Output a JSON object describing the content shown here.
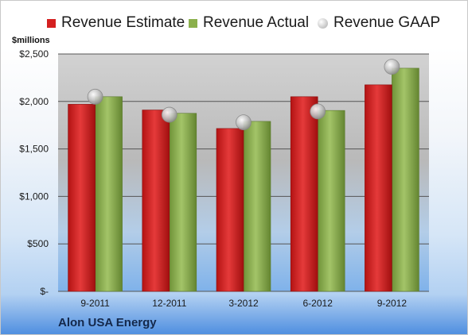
{
  "chart_data": {
    "type": "bar",
    "categories": [
      "9-2011",
      "12-2011",
      "3-2012",
      "6-2012",
      "9-2012"
    ],
    "series": [
      {
        "name": "Revenue Estimate",
        "type": "bar",
        "values": [
          1970,
          1910,
          1715,
          2050,
          2175
        ]
      },
      {
        "name": "Revenue Actual",
        "type": "bar",
        "values": [
          2050,
          1875,
          1790,
          1905,
          2350
        ]
      },
      {
        "name": "Revenue GAAP",
        "type": "scatter",
        "values": [
          2050,
          1860,
          1780,
          1895,
          2365
        ]
      }
    ],
    "ylim": [
      0,
      2500
    ],
    "yticks": [
      0,
      500,
      1000,
      1500,
      2000,
      2500
    ],
    "ytick_labels": [
      "$-",
      "$500",
      "$1,000",
      "$1,500",
      "$2,000",
      "$2,500"
    ],
    "ylabel": "$millions",
    "grid": true,
    "legend_position": "top"
  },
  "company_name": "Alon USA Energy",
  "colors": {
    "estimate": "#d42020",
    "actual": "#8bb04c",
    "gaap": "#c8c8c8"
  }
}
